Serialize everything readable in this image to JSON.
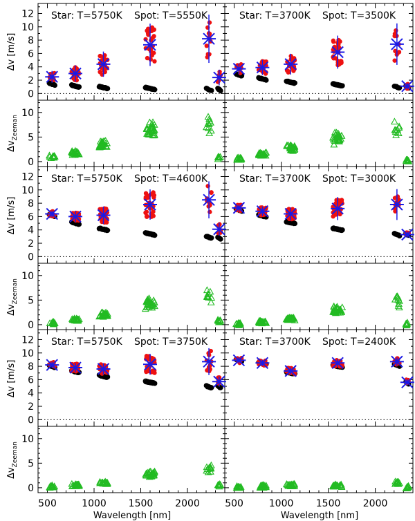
{
  "colors": {
    "fill_red": "#ee1111",
    "cross_blue": "#1a1ae6",
    "black": "#000000",
    "green": "#22bb22"
  },
  "labels": {
    "xlabel": "Wavelength [nm]",
    "ylabel_rv": "Δv [m/s]",
    "ylabel_zeeman_main": "Δv",
    "ylabel_zeeman_sub": "Zeeman"
  },
  "chart_data": {
    "type": "scatter",
    "xlim": [
      400,
      2400
    ],
    "xticks": [
      500,
      1000,
      1500,
      2000
    ],
    "rv_ylim": [
      -1,
      13.5
    ],
    "rv_yticks": [
      0,
      2,
      4,
      6,
      8,
      10,
      12
    ],
    "zeeman_ylim": [
      -1,
      12.5
    ],
    "zeeman_yticks": [
      0,
      5,
      10
    ],
    "panels": [
      {
        "row": 0,
        "col": 0,
        "star_label": "Star: T=5750K",
        "spot_label": "Spot: T=5550K",
        "total_crosses": [
          [
            550,
            2.5
          ],
          [
            800,
            3.0
          ],
          [
            1100,
            4.4
          ],
          [
            1600,
            7.3
          ],
          [
            2230,
            8.2
          ],
          [
            2340,
            2.4
          ]
        ],
        "black_means": [
          [
            550,
            1.4
          ],
          [
            800,
            1.1
          ],
          [
            1100,
            0.9
          ],
          [
            1600,
            0.75
          ],
          [
            2230,
            0.6
          ],
          [
            2340,
            0.6
          ]
        ],
        "zeeman_means": [
          [
            550,
            1.0
          ],
          [
            800,
            1.8
          ],
          [
            1100,
            3.5
          ],
          [
            1600,
            6.5
          ],
          [
            2230,
            8.0
          ],
          [
            2340,
            0.8
          ]
        ]
      },
      {
        "row": 0,
        "col": 1,
        "star_label": "Star: T=3700K",
        "spot_label": "Spot: T=3500K",
        "total_crosses": [
          [
            550,
            3.7
          ],
          [
            800,
            3.9
          ],
          [
            1100,
            4.4
          ],
          [
            1600,
            6.2
          ],
          [
            2230,
            7.4
          ],
          [
            2340,
            1.1
          ]
        ],
        "black_means": [
          [
            550,
            2.8
          ],
          [
            800,
            2.2
          ],
          [
            1100,
            1.7
          ],
          [
            1600,
            1.3
          ],
          [
            2230,
            1.0
          ],
          [
            2340,
            1.0
          ]
        ],
        "zeeman_means": [
          [
            550,
            0.6
          ],
          [
            800,
            1.5
          ],
          [
            1100,
            2.8
          ],
          [
            1600,
            4.8
          ],
          [
            2230,
            6.5
          ],
          [
            2340,
            0.2
          ]
        ]
      },
      {
        "row": 1,
        "col": 0,
        "star_label": "Star: T=5750K",
        "spot_label": "Spot: T=4600K",
        "total_crosses": [
          [
            550,
            6.4
          ],
          [
            800,
            6.0
          ],
          [
            1100,
            6.2
          ],
          [
            1600,
            7.8
          ],
          [
            2230,
            8.5
          ],
          [
            2340,
            4.1
          ]
        ],
        "black_means": [
          [
            550,
            6.2
          ],
          [
            800,
            5.0
          ],
          [
            1100,
            4.1
          ],
          [
            1600,
            3.4
          ],
          [
            2230,
            2.9
          ],
          [
            2340,
            2.8
          ]
        ],
        "zeeman_means": [
          [
            550,
            0.4
          ],
          [
            800,
            1.0
          ],
          [
            1100,
            2.0
          ],
          [
            1600,
            4.4
          ],
          [
            2230,
            5.8
          ],
          [
            2340,
            0.8
          ]
        ]
      },
      {
        "row": 1,
        "col": 1,
        "star_label": "Star: T=3700K",
        "spot_label": "Spot: T=3000K",
        "total_crosses": [
          [
            550,
            7.3
          ],
          [
            800,
            6.8
          ],
          [
            1100,
            6.4
          ],
          [
            1600,
            7.2
          ],
          [
            2230,
            7.8
          ],
          [
            2340,
            3.3
          ]
        ],
        "black_means": [
          [
            550,
            7.0
          ],
          [
            800,
            6.1
          ],
          [
            1100,
            5.1
          ],
          [
            1600,
            4.1
          ],
          [
            2230,
            3.3
          ],
          [
            2340,
            3.3
          ]
        ],
        "zeeman_means": [
          [
            550,
            0.2
          ],
          [
            800,
            0.5
          ],
          [
            1100,
            1.2
          ],
          [
            1600,
            3.0
          ],
          [
            2230,
            4.8
          ],
          [
            2340,
            0.1
          ]
        ]
      },
      {
        "row": 2,
        "col": 0,
        "star_label": "Star: T=5750K",
        "spot_label": "Spot: T=3750K",
        "total_crosses": [
          [
            550,
            8.2
          ],
          [
            800,
            7.8
          ],
          [
            1100,
            7.6
          ],
          [
            1600,
            8.3
          ],
          [
            2230,
            8.7
          ],
          [
            2340,
            5.7
          ]
        ],
        "black_means": [
          [
            550,
            8.0
          ],
          [
            800,
            7.2
          ],
          [
            1100,
            6.5
          ],
          [
            1600,
            5.6
          ],
          [
            2230,
            4.9
          ],
          [
            2340,
            4.9
          ]
        ],
        "zeeman_means": [
          [
            550,
            0.2
          ],
          [
            800,
            0.5
          ],
          [
            1100,
            1.0
          ],
          [
            1600,
            2.7
          ],
          [
            2230,
            3.8
          ],
          [
            2340,
            0.5
          ]
        ]
      },
      {
        "row": 2,
        "col": 1,
        "star_label": "Star: T=3700K",
        "spot_label": "Spot: T=2400K",
        "total_crosses": [
          [
            550,
            8.9
          ],
          [
            800,
            8.5
          ],
          [
            1100,
            7.3
          ],
          [
            1600,
            8.5
          ],
          [
            2230,
            8.7
          ],
          [
            2340,
            5.6
          ]
        ],
        "black_means": [
          [
            550,
            8.9
          ],
          [
            800,
            8.4
          ],
          [
            1100,
            7.0
          ],
          [
            1600,
            8.0
          ],
          [
            2230,
            8.2
          ],
          [
            2340,
            5.5
          ]
        ],
        "zeeman_means": [
          [
            550,
            0.1
          ],
          [
            800,
            0.3
          ],
          [
            1100,
            0.5
          ],
          [
            1600,
            0.4
          ],
          [
            2230,
            1.0
          ],
          [
            2340,
            0.1
          ]
        ]
      }
    ]
  }
}
